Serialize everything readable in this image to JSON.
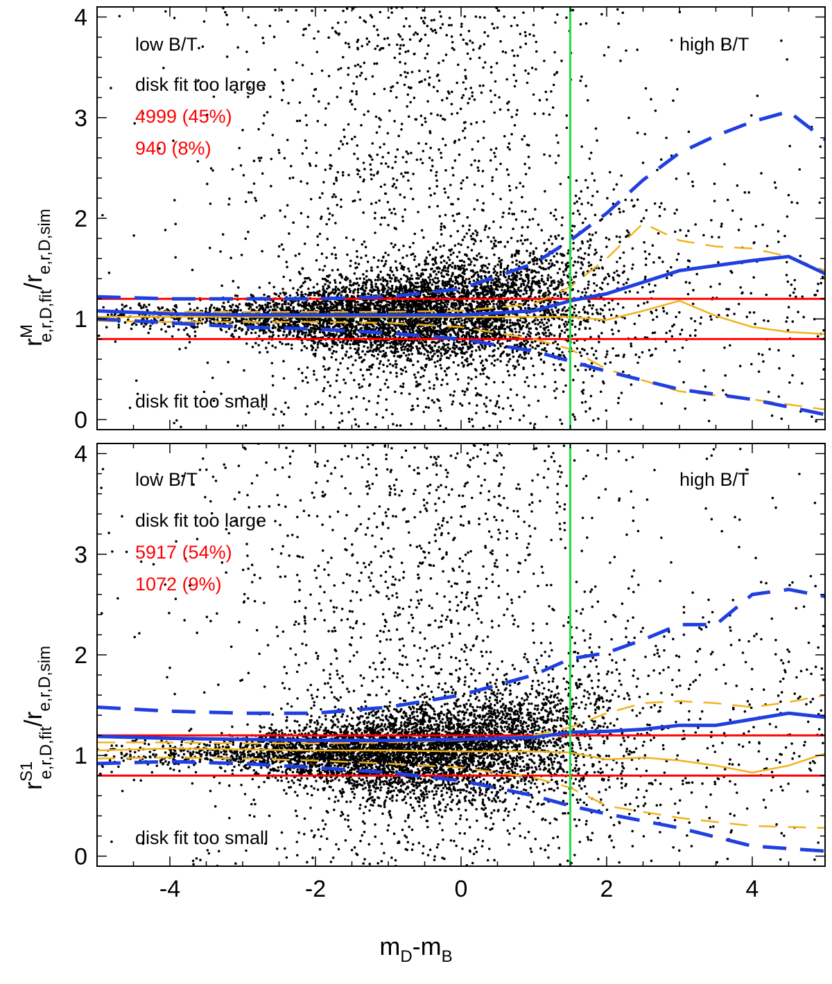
{
  "colors": {
    "points": "#000000",
    "median": "#1f3fe0",
    "spread": "#f2b21b",
    "threshold": "#ff0000",
    "divider": "#22dd44"
  },
  "chart_data": [
    {
      "type": "scatter",
      "panel": "top",
      "ylabel": {
        "base": "r",
        "sup": "M",
        "sub": "e,r,D,fit",
        "slash": "/r",
        "sub2": "e,r,D,sim"
      },
      "xlim": [
        -5,
        5
      ],
      "ylim": [
        -0.1,
        4.1
      ],
      "yticks": [
        "0",
        "1",
        "2",
        "3",
        "4"
      ],
      "threshold_lines": [
        0.8,
        1.2
      ],
      "divider_x": 1.5,
      "annotations": {
        "low": "low B/T",
        "high": "high B/T",
        "large": "disk fit too large",
        "count1": "4999 (45%)",
        "count2": "940 (8%)",
        "small": "disk fit too small"
      },
      "series": [
        {
          "role": "blue-solid",
          "x": [
            -5,
            -4,
            -3,
            -2,
            -1,
            0,
            1,
            1.5,
            2,
            3,
            4,
            4.5,
            5
          ],
          "y": [
            1.08,
            1.05,
            1.04,
            1.04,
            1.04,
            1.04,
            1.08,
            1.18,
            1.25,
            1.48,
            1.58,
            1.62,
            1.45
          ]
        },
        {
          "role": "blue-dash-upper",
          "x": [
            -5,
            -4,
            -3,
            -2,
            -1,
            0,
            1,
            1.5,
            2,
            2.5,
            3,
            3.5,
            4,
            4.5,
            5
          ],
          "y": [
            1.22,
            1.2,
            1.2,
            1.2,
            1.22,
            1.3,
            1.55,
            1.78,
            2.05,
            2.38,
            2.65,
            2.82,
            2.96,
            3.06,
            2.78
          ]
        },
        {
          "role": "blue-dash-lower",
          "x": [
            -5,
            -4,
            -3,
            -2,
            -1,
            0,
            1,
            1.5,
            2,
            3,
            4,
            5
          ],
          "y": [
            1.0,
            0.96,
            0.92,
            0.9,
            0.86,
            0.8,
            0.68,
            0.58,
            0.48,
            0.3,
            0.2,
            0.05
          ]
        },
        {
          "role": "yellow-solid",
          "x": [
            -5,
            -4,
            -3,
            -2,
            -1,
            0,
            1,
            1.5,
            2,
            2.5,
            3,
            3.5,
            4,
            4.5,
            5
          ],
          "y": [
            1.02,
            1.02,
            1.02,
            1.02,
            1.02,
            1.02,
            1.02,
            1.02,
            0.99,
            1.08,
            1.18,
            1.03,
            0.92,
            0.87,
            0.85
          ]
        },
        {
          "role": "yellow-dash-upper",
          "x": [
            -5,
            -4,
            -3,
            -2,
            -1,
            0,
            1,
            1.5,
            2,
            2.5,
            3,
            3.5,
            4,
            4.5,
            5
          ],
          "y": [
            1.08,
            1.07,
            1.07,
            1.07,
            1.07,
            1.08,
            1.15,
            1.32,
            1.6,
            1.95,
            1.78,
            1.72,
            1.7,
            1.62,
            1.48
          ]
        },
        {
          "role": "yellow-dash-lower",
          "x": [
            -5,
            -4,
            -3,
            -2,
            -1,
            0,
            1,
            1.5,
            2,
            3,
            4,
            5
          ],
          "y": [
            0.98,
            0.97,
            0.97,
            0.97,
            0.96,
            0.92,
            0.8,
            0.7,
            0.5,
            0.28,
            0.2,
            0.1
          ]
        }
      ]
    },
    {
      "type": "scatter",
      "panel": "bottom",
      "xlabel": {
        "base": "m",
        "sub": "D",
        "mid": "-m",
        "sub2": "B"
      },
      "ylabel": {
        "base": "r",
        "sup": "S1",
        "sub": "e,r,D,fit",
        "slash": "/r",
        "sub2": "e,r,D,sim"
      },
      "xlim": [
        -5,
        5
      ],
      "ylim": [
        -0.1,
        4.1
      ],
      "xticks": [
        "-4",
        "-2",
        "0",
        "2",
        "4"
      ],
      "yticks": [
        "0",
        "1",
        "2",
        "3",
        "4"
      ],
      "threshold_lines": [
        0.8,
        1.2
      ],
      "divider_x": 1.5,
      "annotations": {
        "low": "low B/T",
        "high": "high B/T",
        "large": "disk fit too large",
        "count1": "5917 (54%)",
        "count2": "1072 (9%)",
        "small": "disk fit too small"
      },
      "series": [
        {
          "role": "blue-solid",
          "x": [
            -5,
            -4,
            -3,
            -2,
            -1,
            0,
            1,
            1.5,
            2,
            2.5,
            3,
            3.5,
            4,
            4.5,
            5
          ],
          "y": [
            1.19,
            1.17,
            1.16,
            1.15,
            1.15,
            1.16,
            1.18,
            1.23,
            1.24,
            1.26,
            1.3,
            1.3,
            1.36,
            1.42,
            1.38
          ]
        },
        {
          "role": "blue-dash-upper",
          "x": [
            -5,
            -4,
            -3,
            -2,
            -1,
            0,
            1,
            1.5,
            2,
            2.5,
            3,
            3.5,
            4,
            4.5,
            5
          ],
          "y": [
            1.48,
            1.44,
            1.42,
            1.42,
            1.48,
            1.6,
            1.8,
            1.96,
            2.02,
            2.15,
            2.3,
            2.3,
            2.6,
            2.65,
            2.58
          ]
        },
        {
          "role": "blue-dash-lower",
          "x": [
            -5,
            -4,
            -3,
            -2,
            -1,
            0,
            1,
            1.5,
            2,
            3,
            4,
            5
          ],
          "y": [
            0.92,
            0.94,
            0.92,
            0.88,
            0.83,
            0.75,
            0.6,
            0.5,
            0.42,
            0.28,
            0.1,
            0.05
          ]
        },
        {
          "role": "yellow-solid",
          "x": [
            -5,
            -4,
            -3,
            -2,
            -1,
            0,
            1,
            1.5,
            2,
            2.5,
            3,
            3.5,
            4,
            4.5,
            5
          ],
          "y": [
            1.05,
            1.07,
            1.06,
            1.05,
            1.05,
            1.04,
            1.04,
            1.03,
            0.96,
            0.98,
            0.95,
            0.9,
            0.83,
            0.9,
            1.02
          ]
        },
        {
          "role": "yellow-dash-upper",
          "x": [
            -5,
            -4,
            -3,
            -2,
            -1,
            0,
            1,
            1.5,
            2,
            2.5,
            3,
            3.5,
            4,
            4.5,
            5
          ],
          "y": [
            1.13,
            1.13,
            1.12,
            1.12,
            1.13,
            1.15,
            1.2,
            1.28,
            1.42,
            1.52,
            1.54,
            1.52,
            1.48,
            1.53,
            1.6
          ]
        },
        {
          "role": "yellow-dash-lower",
          "x": [
            -5,
            -4,
            -3,
            -2,
            -1,
            0,
            1,
            1.5,
            2,
            3,
            4,
            5
          ],
          "y": [
            0.97,
            0.98,
            0.97,
            0.95,
            0.92,
            0.88,
            0.78,
            0.68,
            0.5,
            0.38,
            0.3,
            0.28
          ]
        }
      ]
    }
  ]
}
